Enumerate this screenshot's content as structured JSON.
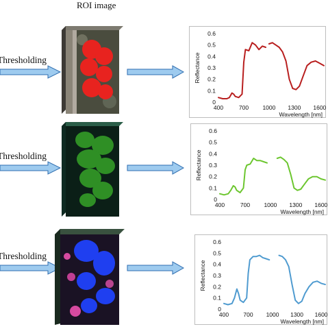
{
  "header": {
    "roi_title": "ROI image"
  },
  "rows": [
    {
      "step_label": "Thresholding",
      "roi_color": "#e8231f",
      "curve_color": "#b81e1e",
      "chart": {
        "ylabel": "Reflectance",
        "xlabel": "Wavelength [nm]",
        "yticks": [
          "0",
          "0.1",
          "0.2",
          "0.3",
          "0.4",
          "0.5",
          "0.6"
        ],
        "xticks": [
          "400",
          "700",
          "1000",
          "1300",
          "1600"
        ]
      }
    },
    {
      "step_label": "Thresholding",
      "roi_color": "#2f8f25",
      "curve_color": "#6cc62f",
      "chart": {
        "ylabel": "Reflectance",
        "xlabel": "Wavelength [nm]",
        "yticks": [
          "0",
          "0.1",
          "0.2",
          "0.3",
          "0.4",
          "0.5",
          "0.6"
        ],
        "xticks": [
          "400",
          "700",
          "1000",
          "1300",
          "1600"
        ]
      }
    },
    {
      "step_label": "Thresholding",
      "roi_color": "#1f3ff0",
      "curve_color": "#4f9bd0",
      "chart": {
        "ylabel": "Reflectance",
        "xlabel": "Wavelength [nm]",
        "yticks": [
          "0",
          "0.1",
          "0.2",
          "0.3",
          "0.4",
          "0.5",
          "0.6"
        ],
        "xticks": [
          "400",
          "700",
          "1000",
          "1300",
          "1600"
        ]
      }
    }
  ],
  "chart_data": [
    {
      "type": "line",
      "xlabel": "Wavelength [nm]",
      "ylabel": "Reflectance",
      "xlim": [
        400,
        1650
      ],
      "ylim": [
        0,
        0.6
      ],
      "series": [
        {
          "x": [
            400,
            450,
            500,
            530,
            560,
            580,
            600,
            640,
            680,
            700,
            720,
            760,
            800,
            840,
            880,
            920,
            960
          ],
          "y": [
            0.04,
            0.03,
            0.03,
            0.04,
            0.08,
            0.07,
            0.05,
            0.04,
            0.07,
            0.35,
            0.46,
            0.45,
            0.52,
            0.5,
            0.46,
            0.49,
            0.48
          ]
        },
        {
          "x": [
            1000,
            1040,
            1080,
            1120,
            1160,
            1200,
            1240,
            1280,
            1320,
            1360,
            1400,
            1450,
            1500,
            1550,
            1600,
            1650
          ],
          "y": [
            0.51,
            0.52,
            0.5,
            0.48,
            0.44,
            0.36,
            0.2,
            0.12,
            0.11,
            0.14,
            0.22,
            0.32,
            0.35,
            0.36,
            0.34,
            0.32
          ]
        }
      ]
    },
    {
      "type": "line",
      "xlabel": "Wavelength [nm]",
      "ylabel": "Reflectance",
      "xlim": [
        400,
        1650
      ],
      "ylim": [
        0,
        0.6
      ],
      "series": [
        {
          "x": [
            400,
            450,
            500,
            530,
            560,
            580,
            600,
            640,
            680,
            700,
            720,
            760,
            800,
            840,
            880,
            920,
            960
          ],
          "y": [
            0.05,
            0.04,
            0.05,
            0.08,
            0.12,
            0.11,
            0.08,
            0.06,
            0.1,
            0.26,
            0.3,
            0.31,
            0.36,
            0.34,
            0.34,
            0.33,
            0.32
          ]
        },
        {
          "x": [
            1080,
            1120,
            1160,
            1200,
            1240,
            1280,
            1320,
            1360,
            1400,
            1450,
            1500,
            1550,
            1600,
            1650
          ],
          "y": [
            0.36,
            0.37,
            0.35,
            0.32,
            0.22,
            0.1,
            0.08,
            0.09,
            0.13,
            0.18,
            0.2,
            0.2,
            0.18,
            0.17
          ]
        }
      ]
    },
    {
      "type": "line",
      "xlabel": "Wavelength [nm]",
      "ylabel": "Reflectance",
      "xlim": [
        400,
        1650
      ],
      "ylim": [
        0,
        0.6
      ],
      "series": [
        {
          "x": [
            400,
            450,
            500,
            530,
            560,
            580,
            600,
            640,
            680,
            700,
            720,
            760,
            800,
            840,
            880,
            920,
            960
          ],
          "y": [
            0.05,
            0.04,
            0.05,
            0.1,
            0.18,
            0.14,
            0.08,
            0.06,
            0.1,
            0.32,
            0.44,
            0.47,
            0.47,
            0.48,
            0.46,
            0.45,
            0.44
          ]
        },
        {
          "x": [
            1080,
            1120,
            1160,
            1200,
            1240,
            1280,
            1320,
            1360,
            1400,
            1450,
            1500,
            1550,
            1600,
            1650
          ],
          "y": [
            0.48,
            0.47,
            0.44,
            0.38,
            0.22,
            0.08,
            0.05,
            0.07,
            0.14,
            0.2,
            0.24,
            0.25,
            0.23,
            0.22
          ]
        }
      ]
    }
  ]
}
